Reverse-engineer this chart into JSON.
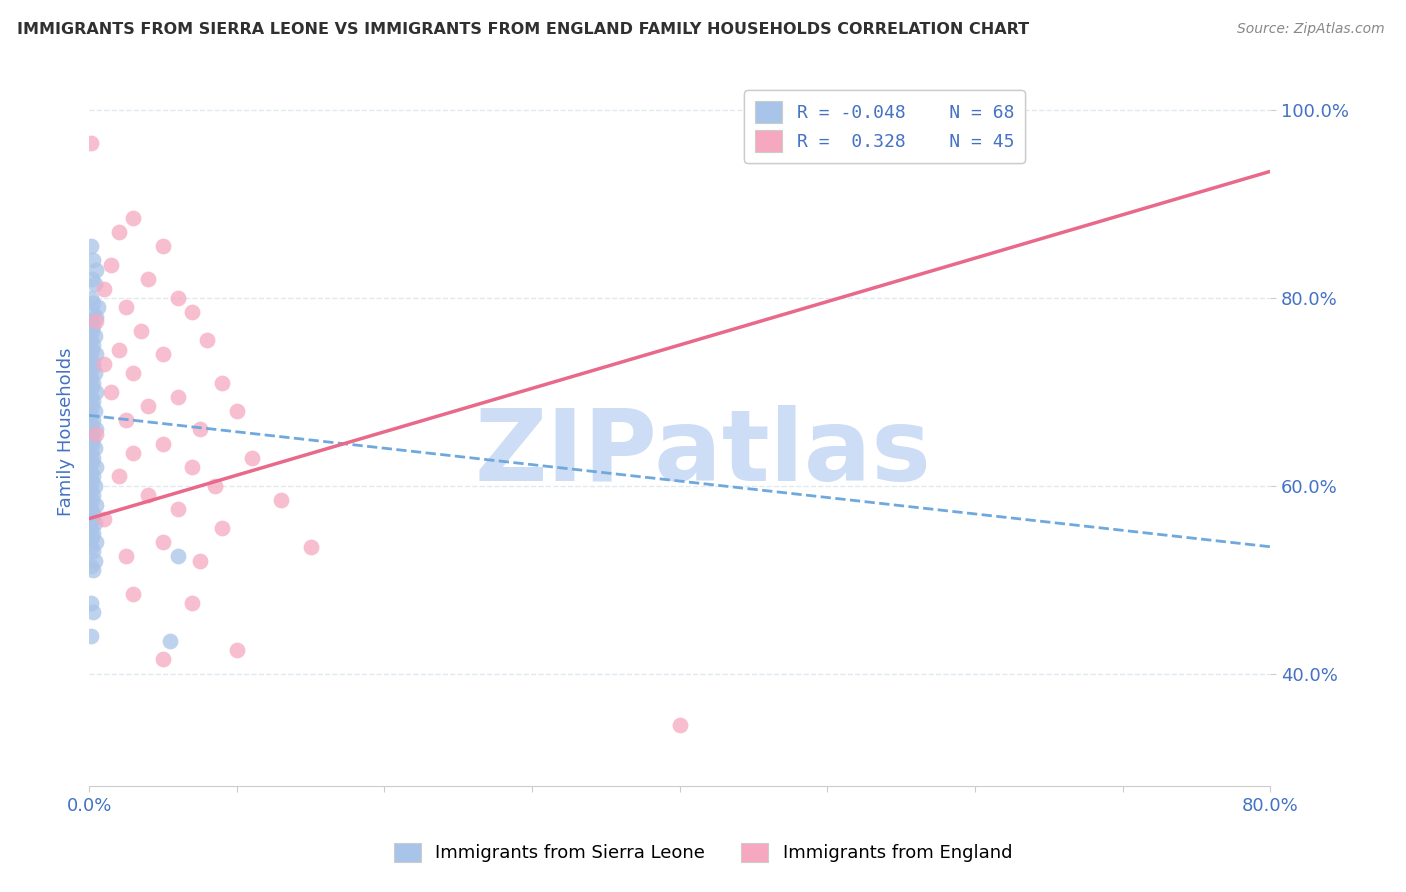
{
  "title": "IMMIGRANTS FROM SIERRA LEONE VS IMMIGRANTS FROM ENGLAND FAMILY HOUSEHOLDS CORRELATION CHART",
  "source": "Source: ZipAtlas.com",
  "ylabel": "Family Households",
  "legend_label_blue": "Immigrants from Sierra Leone",
  "legend_label_pink": "Immigrants from England",
  "blue_color": "#a8c4e8",
  "pink_color": "#f5a8c0",
  "trend_blue_color": "#6fa8dc",
  "trend_pink_color": "#e8698a",
  "watermark": "ZIPatlas",
  "watermark_color": "#ccddf5",
  "background_color": "#ffffff",
  "plot_bg_color": "#ffffff",
  "grid_color": "#e0e8f0",
  "title_color": "#303030",
  "axis_label_color": "#4472c4",
  "tick_color": "#4472c4",
  "legend_text_color": "#4472c4",
  "xmin": 0.0,
  "xmax": 0.8,
  "ymin": 0.28,
  "ymax": 1.035,
  "yticks": [
    0.4,
    0.6,
    0.8,
    1.0
  ],
  "ytick_labels": [
    "40.0%",
    "60.0%",
    "80.0%",
    "100.0%"
  ],
  "xtick_positions": [
    0.0,
    0.1,
    0.2,
    0.3,
    0.4,
    0.5,
    0.6,
    0.7,
    0.8
  ],
  "xtick_labels": [
    "0.0%",
    "",
    "",
    "",
    "",
    "",
    "",
    "",
    "80.0%"
  ],
  "blue_trend": [
    0.0,
    0.675,
    0.8,
    0.535
  ],
  "pink_trend": [
    0.0,
    0.565,
    0.8,
    0.935
  ],
  "blue_scatter": [
    [
      0.001,
      0.855
    ],
    [
      0.003,
      0.84
    ],
    [
      0.005,
      0.83
    ],
    [
      0.002,
      0.82
    ],
    [
      0.004,
      0.815
    ],
    [
      0.001,
      0.8
    ],
    [
      0.003,
      0.795
    ],
    [
      0.006,
      0.79
    ],
    [
      0.002,
      0.785
    ],
    [
      0.005,
      0.78
    ],
    [
      0.001,
      0.775
    ],
    [
      0.003,
      0.77
    ],
    [
      0.002,
      0.765
    ],
    [
      0.004,
      0.76
    ],
    [
      0.001,
      0.755
    ],
    [
      0.003,
      0.75
    ],
    [
      0.002,
      0.745
    ],
    [
      0.005,
      0.74
    ],
    [
      0.001,
      0.735
    ],
    [
      0.003,
      0.73
    ],
    [
      0.002,
      0.725
    ],
    [
      0.004,
      0.72
    ],
    [
      0.001,
      0.715
    ],
    [
      0.003,
      0.71
    ],
    [
      0.002,
      0.705
    ],
    [
      0.005,
      0.7
    ],
    [
      0.001,
      0.695
    ],
    [
      0.003,
      0.69
    ],
    [
      0.002,
      0.685
    ],
    [
      0.004,
      0.68
    ],
    [
      0.001,
      0.675
    ],
    [
      0.003,
      0.67
    ],
    [
      0.002,
      0.665
    ],
    [
      0.005,
      0.66
    ],
    [
      0.001,
      0.655
    ],
    [
      0.003,
      0.65
    ],
    [
      0.002,
      0.645
    ],
    [
      0.004,
      0.64
    ],
    [
      0.001,
      0.635
    ],
    [
      0.003,
      0.63
    ],
    [
      0.002,
      0.625
    ],
    [
      0.005,
      0.62
    ],
    [
      0.001,
      0.615
    ],
    [
      0.003,
      0.61
    ],
    [
      0.002,
      0.605
    ],
    [
      0.004,
      0.6
    ],
    [
      0.001,
      0.595
    ],
    [
      0.003,
      0.59
    ],
    [
      0.002,
      0.585
    ],
    [
      0.005,
      0.58
    ],
    [
      0.001,
      0.575
    ],
    [
      0.003,
      0.57
    ],
    [
      0.002,
      0.565
    ],
    [
      0.004,
      0.56
    ],
    [
      0.001,
      0.555
    ],
    [
      0.003,
      0.55
    ],
    [
      0.002,
      0.545
    ],
    [
      0.005,
      0.54
    ],
    [
      0.001,
      0.535
    ],
    [
      0.003,
      0.53
    ],
    [
      0.06,
      0.525
    ],
    [
      0.004,
      0.52
    ],
    [
      0.001,
      0.515
    ],
    [
      0.003,
      0.51
    ],
    [
      0.001,
      0.475
    ],
    [
      0.003,
      0.465
    ],
    [
      0.001,
      0.44
    ],
    [
      0.055,
      0.435
    ]
  ],
  "pink_scatter": [
    [
      0.001,
      0.965
    ],
    [
      0.03,
      0.885
    ],
    [
      0.02,
      0.87
    ],
    [
      0.05,
      0.855
    ],
    [
      0.015,
      0.835
    ],
    [
      0.04,
      0.82
    ],
    [
      0.01,
      0.81
    ],
    [
      0.06,
      0.8
    ],
    [
      0.025,
      0.79
    ],
    [
      0.07,
      0.785
    ],
    [
      0.005,
      0.775
    ],
    [
      0.035,
      0.765
    ],
    [
      0.08,
      0.755
    ],
    [
      0.02,
      0.745
    ],
    [
      0.05,
      0.74
    ],
    [
      0.01,
      0.73
    ],
    [
      0.03,
      0.72
    ],
    [
      0.09,
      0.71
    ],
    [
      0.015,
      0.7
    ],
    [
      0.06,
      0.695
    ],
    [
      0.04,
      0.685
    ],
    [
      0.1,
      0.68
    ],
    [
      0.025,
      0.67
    ],
    [
      0.075,
      0.66
    ],
    [
      0.005,
      0.655
    ],
    [
      0.05,
      0.645
    ],
    [
      0.03,
      0.635
    ],
    [
      0.11,
      0.63
    ],
    [
      0.07,
      0.62
    ],
    [
      0.02,
      0.61
    ],
    [
      0.085,
      0.6
    ],
    [
      0.04,
      0.59
    ],
    [
      0.13,
      0.585
    ],
    [
      0.06,
      0.575
    ],
    [
      0.01,
      0.565
    ],
    [
      0.09,
      0.555
    ],
    [
      0.05,
      0.54
    ],
    [
      0.15,
      0.535
    ],
    [
      0.025,
      0.525
    ],
    [
      0.075,
      0.52
    ],
    [
      0.03,
      0.485
    ],
    [
      0.07,
      0.475
    ],
    [
      0.1,
      0.425
    ],
    [
      0.05,
      0.415
    ],
    [
      0.4,
      0.345
    ]
  ]
}
